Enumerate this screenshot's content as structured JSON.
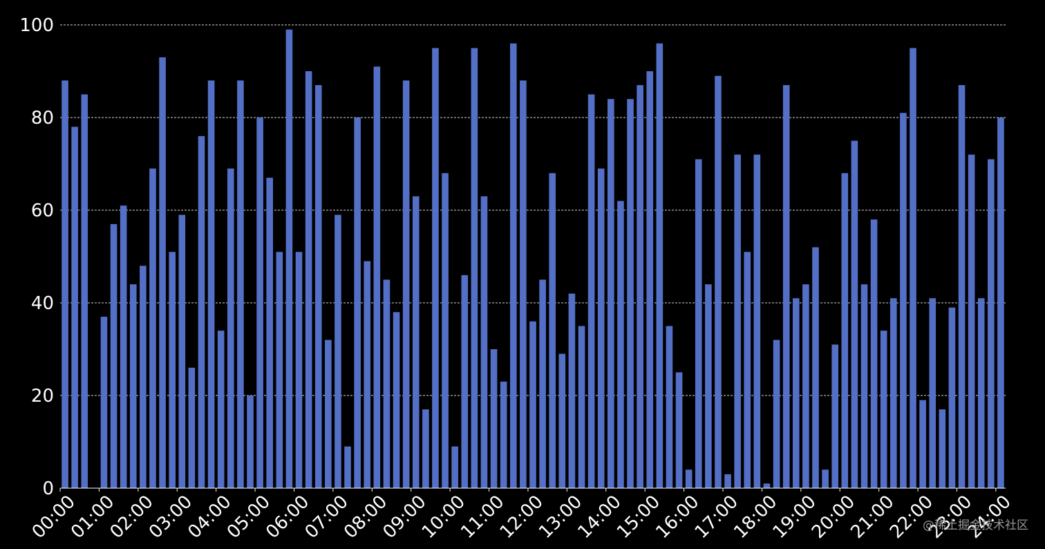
{
  "chart_data": {
    "type": "bar",
    "x_tick_labels": [
      "00:00",
      "01:00",
      "02:00",
      "03:00",
      "04:00",
      "05:00",
      "06:00",
      "07:00",
      "08:00",
      "09:00",
      "10:00",
      "11:00",
      "12:00",
      "13:00",
      "14:00",
      "15:00",
      "16:00",
      "17:00",
      "18:00",
      "19:00",
      "20:00",
      "21:00",
      "22:00",
      "23:00",
      "24:00"
    ],
    "bar_interval_minutes": 15,
    "values": [
      88,
      78,
      85,
      0,
      37,
      57,
      61,
      44,
      48,
      69,
      93,
      51,
      59,
      26,
      76,
      88,
      34,
      69,
      88,
      20,
      80,
      67,
      51,
      99,
      51,
      90,
      87,
      32,
      59,
      9,
      80,
      49,
      91,
      45,
      38,
      88,
      63,
      17,
      95,
      68,
      9,
      46,
      95,
      63,
      30,
      23,
      96,
      88,
      36,
      45,
      68,
      29,
      42,
      35,
      85,
      69,
      84,
      62,
      84,
      87,
      90,
      96,
      35,
      25,
      4,
      71,
      44,
      89,
      3,
      72,
      51,
      72,
      1,
      32,
      87,
      41,
      44,
      52,
      4,
      31,
      68,
      75,
      44,
      58,
      34,
      41,
      81,
      95,
      19,
      41,
      17,
      39,
      87,
      72,
      41,
      71,
      80
    ],
    "y_ticks": [
      0,
      20,
      40,
      60,
      80,
      100
    ],
    "ylim": [
      0,
      100
    ],
    "grid": true,
    "bar_color": "#5470c6",
    "title": "",
    "xlabel": "",
    "ylabel": ""
  },
  "watermark": "@稀土掘金技术社区"
}
